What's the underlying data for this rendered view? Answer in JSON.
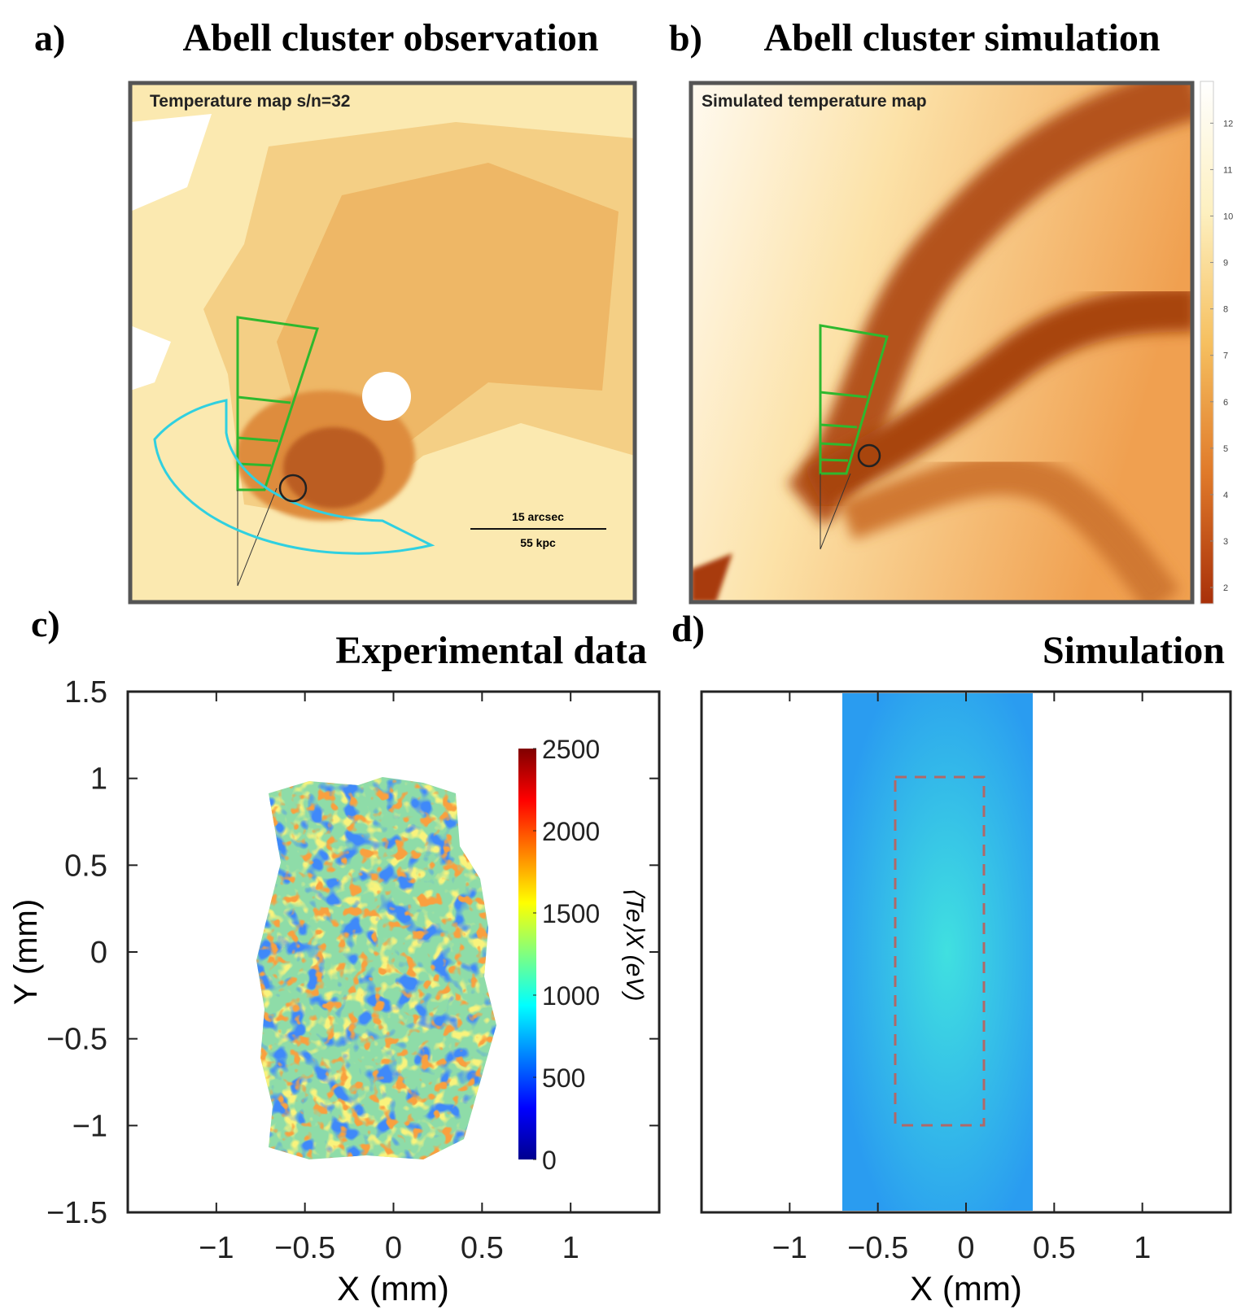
{
  "panels": [
    {
      "label": "a)",
      "title": "Abell cluster observation",
      "map_label": "Temperature map s/n=32",
      "scale_bar": [
        "15 arcsec",
        "55 kpc"
      ]
    },
    {
      "label": "b)",
      "title": "Abell cluster simulation",
      "map_label": "Simulated temperature map",
      "colorbar": {
        "lim": [
          1.65,
          12.9
        ],
        "ticks": [
          2,
          3,
          4,
          5,
          6,
          7,
          8,
          9,
          10,
          11,
          12
        ]
      }
    },
    {
      "label": "c)",
      "title": "Experimental data",
      "x_label": "X (mm)",
      "y_label": "Y (mm)",
      "xlim": [
        -1.5,
        1.5
      ],
      "xticks": [
        {
          "value": -1,
          "label": "−1"
        },
        {
          "value": -0.5,
          "label": "−0.5"
        },
        0,
        0.5,
        1
      ],
      "ylim": [
        -1.5,
        1.5
      ],
      "yticks": [
        1.5,
        1,
        0.5,
        0,
        {
          "value": -0.5,
          "label": "−0.5"
        },
        {
          "value": -1,
          "label": "−1"
        },
        {
          "value": -1.5,
          "label": "−1.5"
        }
      ],
      "colorbar": {
        "label": "⟨Te⟩X (eV)",
        "lim": [
          0,
          2500
        ],
        "ticks": [
          0,
          500,
          1000,
          1500,
          2000,
          2500
        ]
      }
    },
    {
      "label": "d)",
      "title": "Simulation",
      "x_label": "X (mm)",
      "xlim": [
        -1.5,
        1.5
      ],
      "xticks": [
        {
          "value": -1,
          "label": "−1"
        },
        {
          "value": -0.5,
          "label": "−0.5"
        },
        0,
        0.5,
        1
      ]
    }
  ]
}
